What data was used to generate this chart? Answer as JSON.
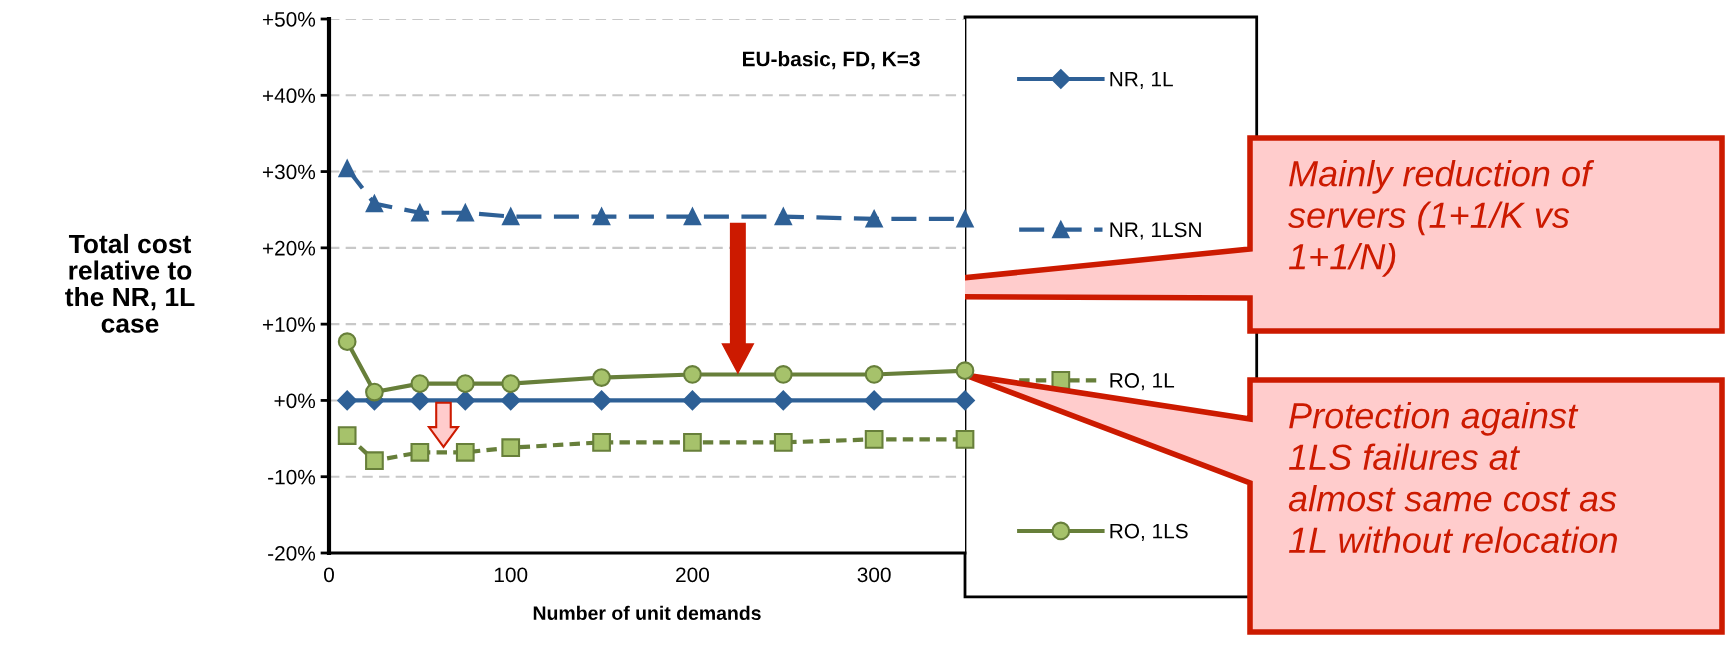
{
  "chart_data": {
    "type": "line",
    "xlabel": "Number of unit demands",
    "ylabel": "Total cost\nrelative to\nthe NR, 1L\ncase",
    "x": [
      10,
      25,
      50,
      75,
      100,
      150,
      200,
      250,
      300,
      350
    ],
    "series": [
      {
        "name": "NR, 1L",
        "color": "#2e6096",
        "marker": "diamond",
        "line_style": "solid",
        "values": [
          0,
          0,
          0,
          0,
          0,
          0,
          0,
          0,
          0,
          0
        ]
      },
      {
        "name": "NR, 1LSN",
        "color": "#2e6096",
        "marker": "triangle",
        "line_style": "dashed",
        "values": [
          30.4,
          25.8,
          24.6,
          24.6,
          24.1,
          24.1,
          24.1,
          24.1,
          23.8,
          23.8
        ]
      },
      {
        "name": "RO, 1L",
        "color": "#677f3a",
        "marker": "square",
        "line_style": "dotted",
        "values": [
          -4.6,
          -7.9,
          -6.8,
          -6.8,
          -6.2,
          -5.5,
          -5.5,
          -5.5,
          -5.1,
          -5.1
        ]
      },
      {
        "name": "RO, 1LS",
        "color": "#677f3a",
        "marker": "circle",
        "line_style": "solid",
        "values": [
          7.7,
          1.1,
          2.2,
          2.2,
          2.2,
          3.0,
          3.4,
          3.4,
          3.4,
          3.9
        ]
      }
    ],
    "xlim": [
      0,
      350
    ],
    "xticks": [
      0,
      100,
      200,
      300
    ],
    "ylim": [
      -20,
      50
    ],
    "yticks": [
      {
        "value": -20,
        "label": "-20%"
      },
      {
        "value": -10,
        "label": "-10%"
      },
      {
        "value": 0,
        "label": "+0%"
      },
      {
        "value": 10,
        "label": "+10%"
      },
      {
        "value": 20,
        "label": "+20%"
      },
      {
        "value": 30,
        "label": "+30%"
      },
      {
        "value": 40,
        "label": "+40%"
      },
      {
        "value": 50,
        "label": "+50%"
      }
    ],
    "grid": "y",
    "legend": "right",
    "annotations": [
      "EU-basic, FD, K=3",
      "Mainly reduction of\nservers (1+1/K vs\n1+1/N)",
      "Protection against\n1LS failures at\nalmost same cost as\n1L without relocation"
    ]
  }
}
